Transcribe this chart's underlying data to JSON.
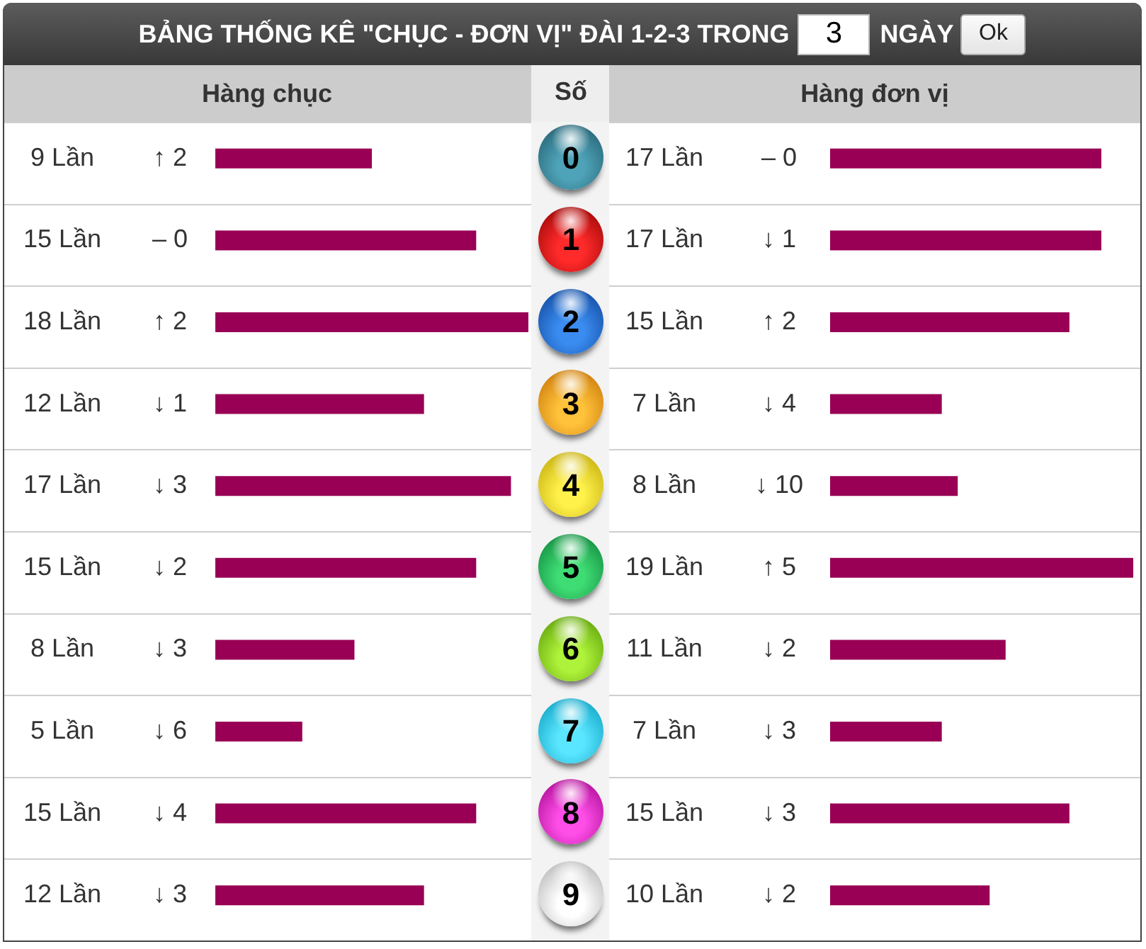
{
  "chart_data": [
    {
      "type": "other",
      "title": "BẢNG THỐNG KÊ \"CHỤC - ĐƠN VỊ\" ĐÀI 1-2-3 TRONG",
      "annotations": [
        "3",
        "NGÀY",
        "Ok"
      ]
    },
    {
      "type": "bar",
      "orientation": "horizontal",
      "title": "Hàng chục",
      "categories": [
        "0",
        "1",
        "2",
        "3",
        "4",
        "5",
        "6",
        "7",
        "8",
        "9"
      ],
      "values": [
        9,
        15,
        18,
        12,
        17,
        15,
        8,
        5,
        15,
        12
      ],
      "color": "#990055",
      "value_labels": [
        "9 Lần",
        "15 Lần",
        "18 Lần",
        "12 Lần",
        "17 Lần",
        "15 Lần",
        "8 Lần",
        "5 Lần",
        "15 Lần",
        "12 Lần"
      ],
      "annotations": [
        "↑ 2",
        "– 0",
        "↑ 2",
        "↓ 1",
        "↓ 3",
        "↓ 2",
        "↓ 3",
        "↓ 6",
        "↓ 4",
        "↓ 3"
      ],
      "tick_labels": false
    },
    {
      "type": "bar",
      "orientation": "horizontal",
      "title": "Hàng đơn vị",
      "ylabel": "Số",
      "categories": [
        "0",
        "1",
        "2",
        "3",
        "4",
        "5",
        "6",
        "7",
        "8",
        "9"
      ],
      "values": [
        17,
        17,
        15,
        7,
        8,
        19,
        11,
        7,
        15,
        10
      ],
      "color": "#990055",
      "value_labels": [
        "17 Lần",
        "17 Lần",
        "15 Lần",
        "7 Lần",
        "8 Lần",
        "19 Lần",
        "11 Lần",
        "7 Lần",
        "15 Lần",
        "10 Lần"
      ],
      "annotations": [
        "– 0",
        "↓ 1",
        "↑ 2",
        "↓ 4",
        "↓ 10",
        "↑ 5",
        "↓ 2",
        "↓ 3",
        "↓ 3",
        "↓ 2"
      ],
      "tick_labels": "y"
    }
  ]
}
